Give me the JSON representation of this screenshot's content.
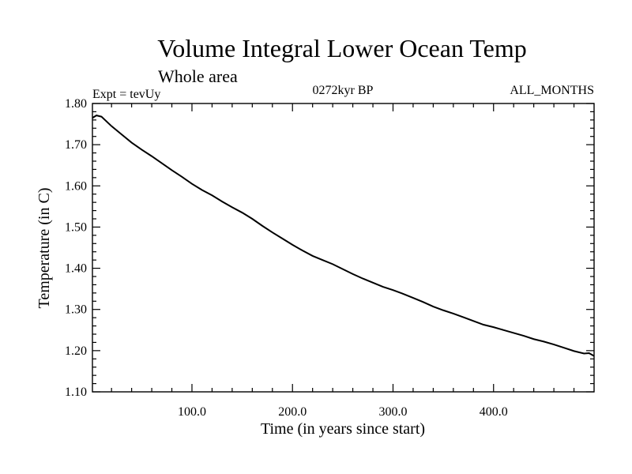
{
  "chart_data": {
    "type": "line",
    "title": "Volume Integral Lower Ocean Temp",
    "subtitle": "Whole area",
    "left_label": "Expt = tevUy",
    "center_label": "0272kyr BP",
    "right_label": "ALL_MONTHS",
    "xlabel": "Time (in years since start)",
    "ylabel": "Temperature (in C)",
    "xlim": [
      1,
      500
    ],
    "ylim": [
      1.1,
      1.8
    ],
    "x_ticks": [
      100,
      200,
      300,
      400
    ],
    "x_tick_labels": [
      "100.0",
      "200.0",
      "300.0",
      "400.0"
    ],
    "y_ticks": [
      1.1,
      1.2,
      1.3,
      1.4,
      1.5,
      1.6,
      1.7,
      1.8
    ],
    "y_tick_labels": [
      "1.10",
      "1.20",
      "1.30",
      "1.40",
      "1.50",
      "1.60",
      "1.70",
      "1.80"
    ],
    "grid": false,
    "line_color": "#000000",
    "series": [
      {
        "x": [
          1,
          5,
          10,
          20,
          30,
          40,
          50,
          60,
          70,
          80,
          90,
          100,
          110,
          120,
          130,
          140,
          150,
          160,
          170,
          180,
          190,
          200,
          210,
          220,
          230,
          240,
          250,
          260,
          270,
          280,
          290,
          300,
          310,
          320,
          330,
          340,
          350,
          360,
          370,
          380,
          390,
          400,
          410,
          420,
          430,
          440,
          450,
          460,
          470,
          480,
          490,
          495,
          500
        ],
        "y": [
          1.765,
          1.771,
          1.768,
          1.745,
          1.725,
          1.705,
          1.688,
          1.672,
          1.655,
          1.638,
          1.622,
          1.605,
          1.59,
          1.577,
          1.562,
          1.548,
          1.535,
          1.52,
          1.503,
          1.487,
          1.472,
          1.457,
          1.443,
          1.43,
          1.42,
          1.41,
          1.398,
          1.386,
          1.375,
          1.365,
          1.355,
          1.347,
          1.338,
          1.328,
          1.318,
          1.307,
          1.298,
          1.29,
          1.281,
          1.272,
          1.263,
          1.257,
          1.25,
          1.243,
          1.236,
          1.228,
          1.222,
          1.215,
          1.207,
          1.199,
          1.193,
          1.194,
          1.187
        ]
      }
    ]
  }
}
